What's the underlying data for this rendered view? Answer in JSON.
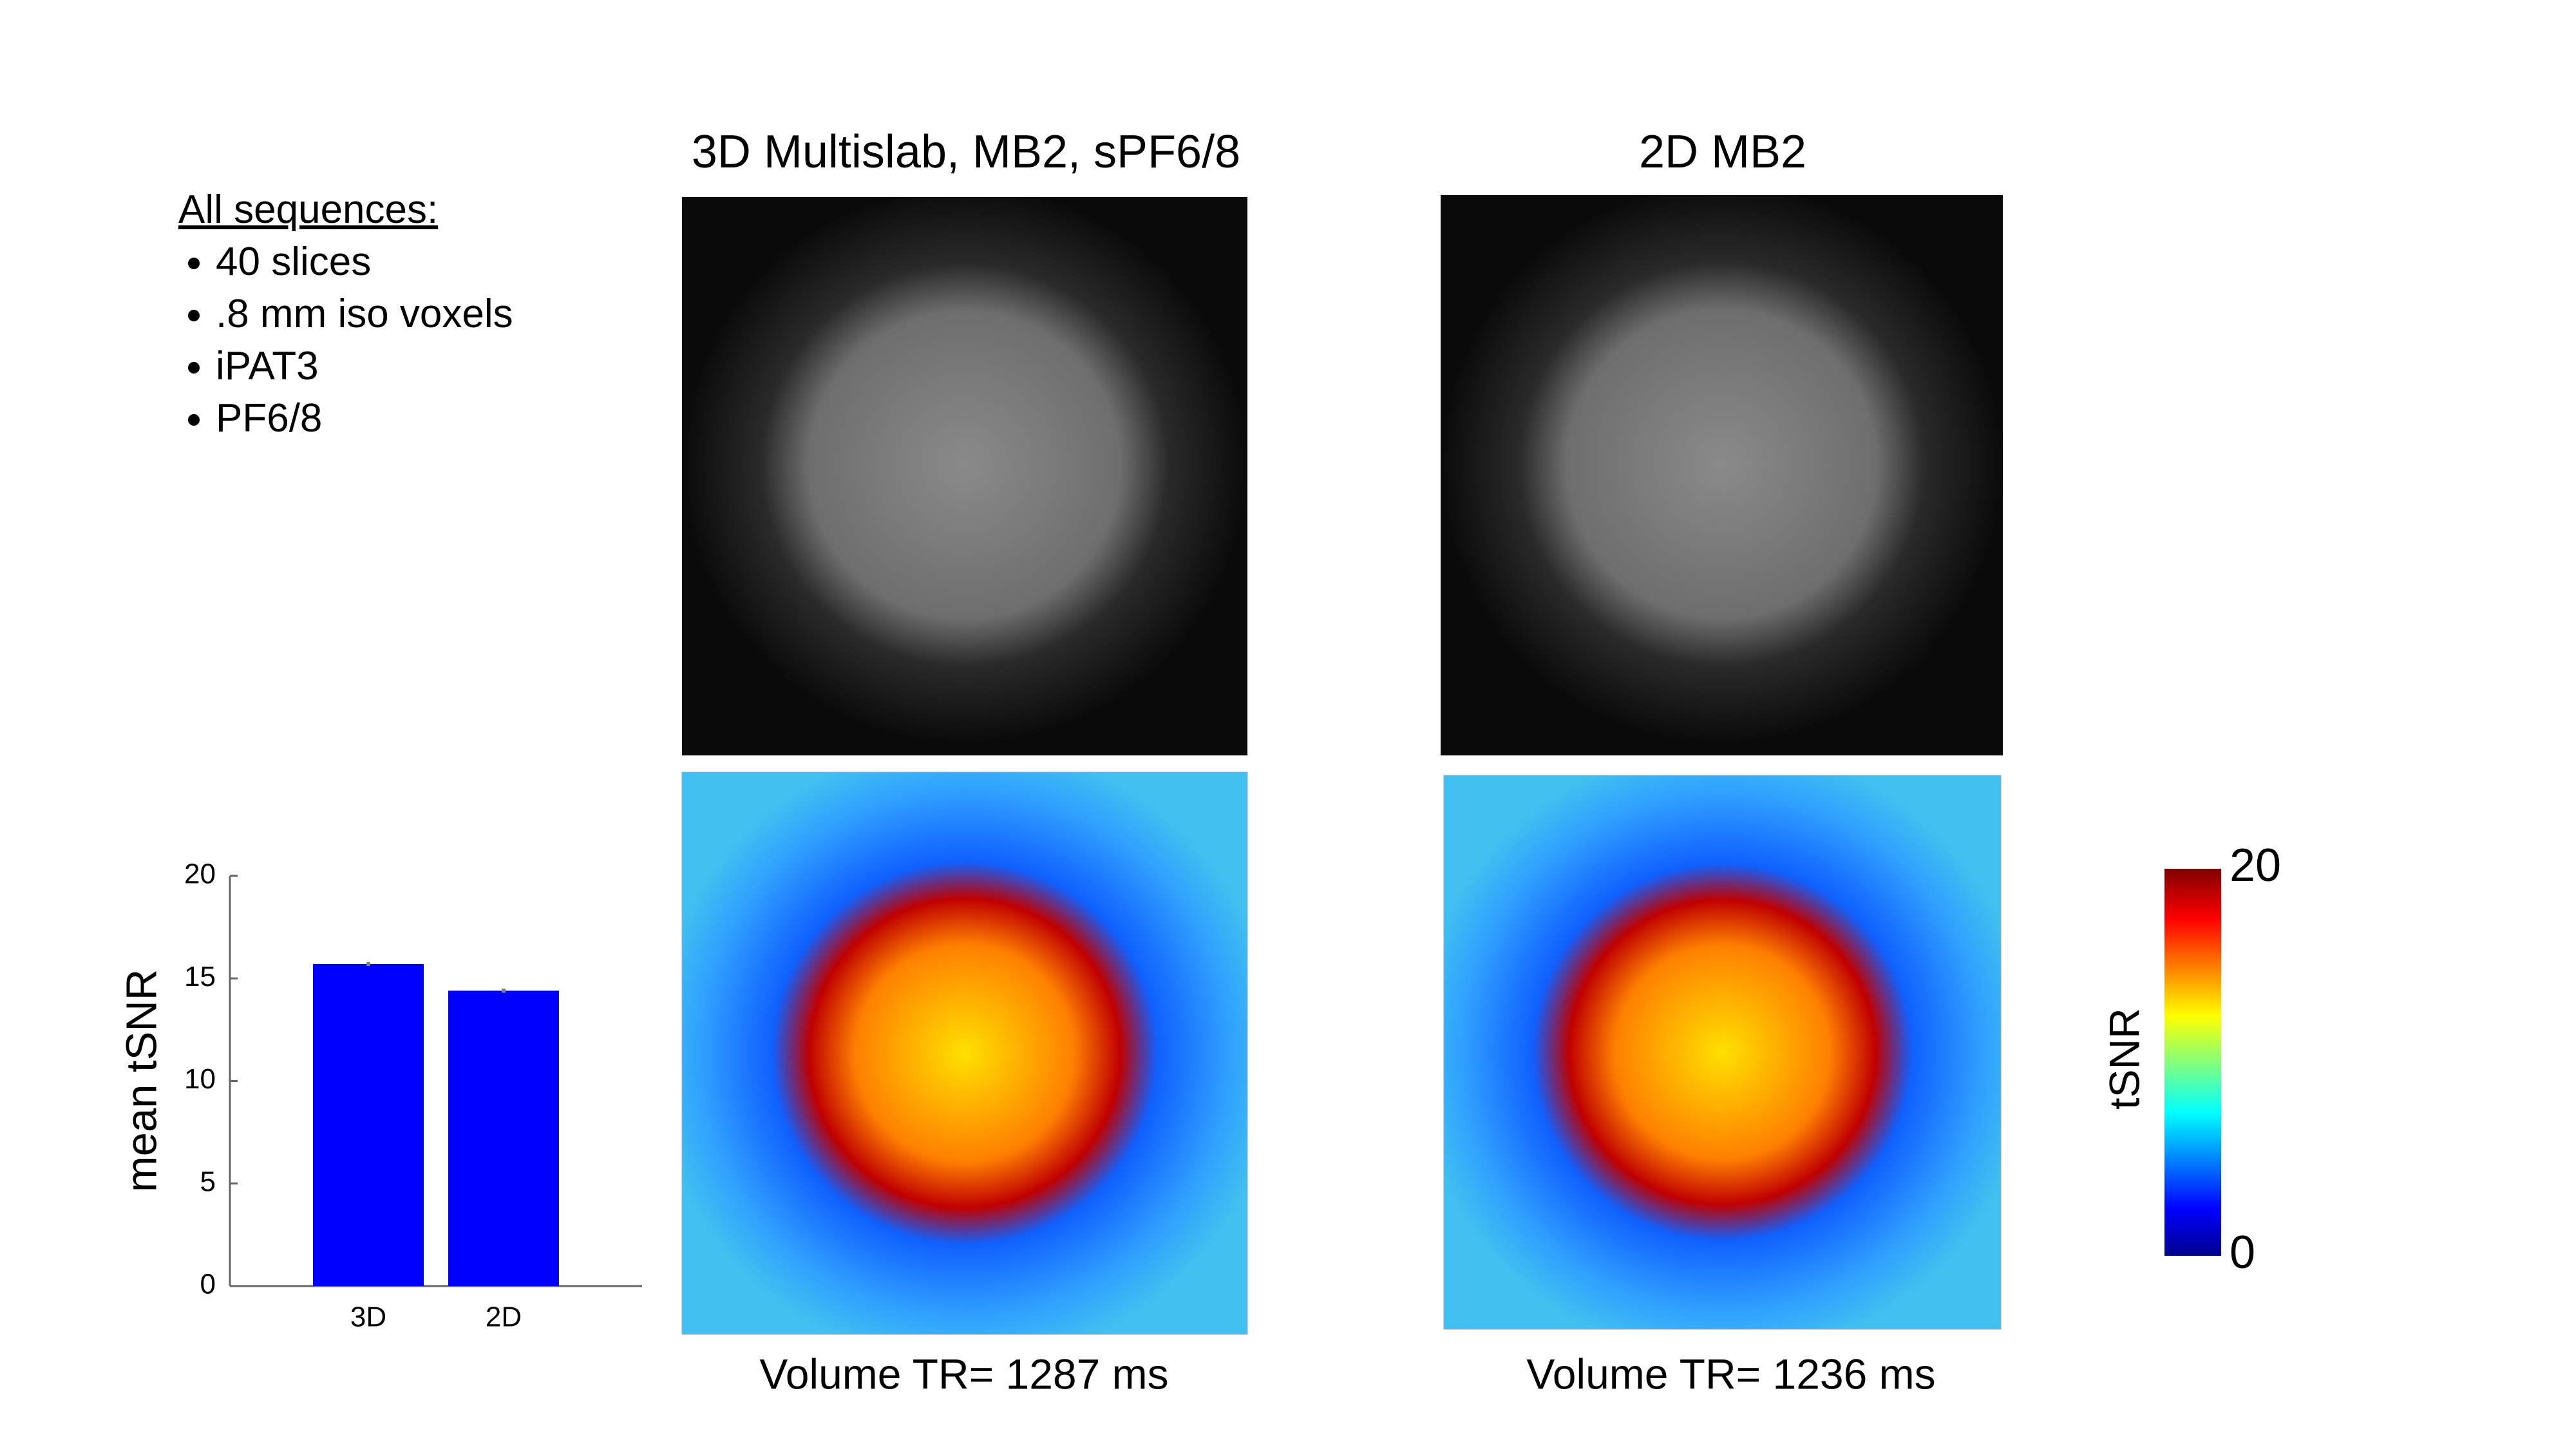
{
  "notes": {
    "heading": "All sequences:",
    "items": [
      "40 slices",
      ".8 mm iso voxels",
      "iPAT3",
      "PF6/8"
    ]
  },
  "panels": [
    {
      "title": "3D Multislab, MB2, sPF6/8",
      "caption": "Volume TR= 1287 ms"
    },
    {
      "title": "2D MB2",
      "caption": "Volume TR= 1236 ms"
    }
  ],
  "colorbar": {
    "label": "tSNR",
    "ticks": [
      0,
      20
    ]
  },
  "chart_data": {
    "type": "bar",
    "ylabel": "mean tSNR",
    "categories": [
      "3D",
      "2D"
    ],
    "values": [
      15.7,
      14.4
    ],
    "errors": [
      0.1,
      0.1
    ],
    "color": "#0000ff",
    "error_color": "#808080",
    "ylim": [
      0,
      20
    ],
    "yticks": [
      0,
      5,
      10,
      15,
      20
    ]
  }
}
